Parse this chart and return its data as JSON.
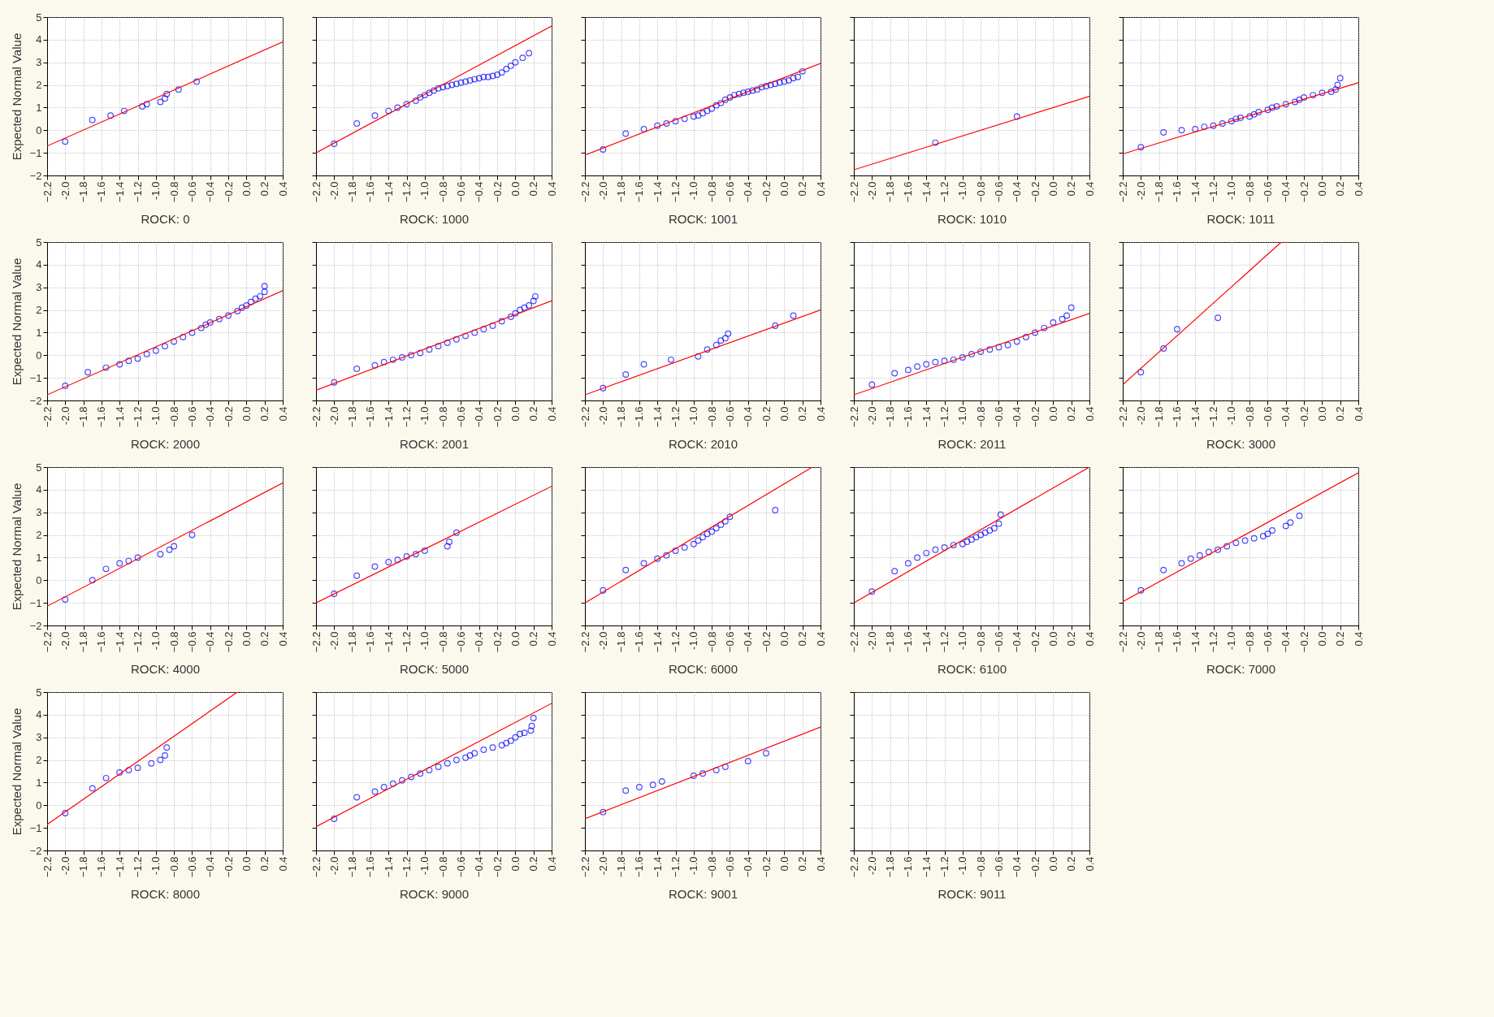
{
  "chart_data": [
    {
      "type": "scatter",
      "xlabel": "ROCK: 0",
      "ylabel": "Expected Normal Value",
      "grid": true,
      "xlim": [
        -2.2,
        0.4
      ],
      "ylim": [
        -2,
        5
      ],
      "xticks": [
        -2.2,
        {
          "value": -2,
          "label": "-2.0"
        },
        -1.8,
        -1.6,
        -1.4,
        -1.2,
        {
          "value": -1,
          "label": "-1.0"
        },
        -0.8,
        -0.6,
        -0.4,
        -0.2,
        {
          "value": 0,
          "label": "0.0"
        },
        0.2,
        0.4
      ],
      "yticks": [
        -2,
        -1,
        0,
        1,
        2,
        3,
        4,
        5
      ],
      "series": [
        {
          "type": "scatter",
          "marker": "circle",
          "color": "#0000ff",
          "x": [
            -2.0,
            -1.7,
            -1.5,
            -1.35,
            -1.15,
            -1.1,
            -0.95,
            -0.9,
            -0.88,
            -0.75,
            -0.55
          ],
          "values": [
            -0.5,
            0.45,
            0.65,
            0.85,
            1.05,
            1.15,
            1.25,
            1.4,
            1.6,
            1.8,
            2.15
          ]
        },
        {
          "type": "line",
          "color": "#ff0000",
          "x": [
            -2.2,
            0.4
          ],
          "values": [
            -0.7,
            3.9
          ]
        }
      ]
    },
    {
      "type": "scatter",
      "xlabel": "ROCK: 1000",
      "tick_labels": "x",
      "grid": true,
      "xlim": [
        -2.2,
        0.4
      ],
      "ylim": [
        -2,
        5
      ],
      "xticks": [
        -2.2,
        {
          "value": -2,
          "label": "-2.0"
        },
        -1.8,
        -1.6,
        -1.4,
        -1.2,
        {
          "value": -1,
          "label": "-1.0"
        },
        -0.8,
        -0.6,
        -0.4,
        -0.2,
        {
          "value": 0,
          "label": "0.0"
        },
        0.2,
        0.4
      ],
      "yticks": [
        -2,
        -1,
        0,
        1,
        2,
        3,
        4,
        5
      ],
      "series": [
        {
          "type": "scatter",
          "marker": "circle",
          "color": "#0000ff",
          "x": [
            -2.0,
            -1.75,
            -1.55,
            -1.4,
            -1.3,
            -1.2,
            -1.1,
            -1.05,
            -1.0,
            -0.95,
            -0.9,
            -0.85,
            -0.8,
            -0.75,
            -0.7,
            -0.65,
            -0.6,
            -0.55,
            -0.5,
            -0.45,
            -0.4,
            -0.35,
            -0.3,
            -0.25,
            -0.2,
            -0.15,
            -0.1,
            -0.05,
            0.0,
            0.08,
            0.15
          ],
          "values": [
            -0.6,
            0.3,
            0.65,
            0.85,
            1.0,
            1.15,
            1.3,
            1.45,
            1.55,
            1.65,
            1.75,
            1.85,
            1.9,
            1.95,
            2.0,
            2.05,
            2.1,
            2.15,
            2.2,
            2.25,
            2.3,
            2.35,
            2.35,
            2.4,
            2.45,
            2.55,
            2.7,
            2.85,
            3.0,
            3.2,
            3.4
          ]
        },
        {
          "type": "line",
          "color": "#ff0000",
          "x": [
            -2.2,
            0.4
          ],
          "values": [
            -1.0,
            4.6
          ]
        }
      ]
    },
    {
      "type": "scatter",
      "xlabel": "ROCK: 1001",
      "tick_labels": "x",
      "grid": true,
      "xlim": [
        -2.2,
        0.4
      ],
      "ylim": [
        -2,
        5
      ],
      "xticks": [
        -2.2,
        {
          "value": -2,
          "label": "-2.0"
        },
        -1.8,
        -1.6,
        -1.4,
        -1.2,
        {
          "value": -1,
          "label": "-1.0"
        },
        -0.8,
        -0.6,
        -0.4,
        -0.2,
        {
          "value": 0,
          "label": "0.0"
        },
        0.2,
        0.4
      ],
      "yticks": [
        -2,
        -1,
        0,
        1,
        2,
        3,
        4,
        5
      ],
      "series": [
        {
          "type": "scatter",
          "marker": "circle",
          "color": "#0000ff",
          "x": [
            -2.0,
            -1.75,
            -1.55,
            -1.4,
            -1.3,
            -1.2,
            -1.1,
            -1.0,
            -0.95,
            -0.9,
            -0.85,
            -0.8,
            -0.75,
            -0.7,
            -0.65,
            -0.6,
            -0.55,
            -0.5,
            -0.45,
            -0.4,
            -0.35,
            -0.3,
            -0.25,
            -0.2,
            -0.15,
            -0.1,
            -0.05,
            0.0,
            0.05,
            0.1,
            0.15,
            0.2
          ],
          "values": [
            -0.85,
            -0.15,
            0.05,
            0.2,
            0.3,
            0.4,
            0.5,
            0.6,
            0.65,
            0.75,
            0.85,
            0.95,
            1.1,
            1.2,
            1.35,
            1.45,
            1.55,
            1.6,
            1.65,
            1.7,
            1.75,
            1.8,
            1.9,
            1.95,
            2.0,
            2.05,
            2.1,
            2.15,
            2.2,
            2.3,
            2.35,
            2.6
          ]
        },
        {
          "type": "line",
          "color": "#ff0000",
          "x": [
            -2.2,
            0.4
          ],
          "values": [
            -1.1,
            2.95
          ]
        }
      ]
    },
    {
      "type": "scatter",
      "xlabel": "ROCK: 1010",
      "tick_labels": "x",
      "grid": true,
      "xlim": [
        -2.2,
        0.4
      ],
      "ylim": [
        -2,
        5
      ],
      "xticks": [
        -2.2,
        {
          "value": -2,
          "label": "-2.0"
        },
        -1.8,
        -1.6,
        -1.4,
        -1.2,
        {
          "value": -1,
          "label": "-1.0"
        },
        -0.8,
        -0.6,
        -0.4,
        -0.2,
        {
          "value": 0,
          "label": "0.0"
        },
        0.2,
        0.4
      ],
      "yticks": [
        -2,
        -1,
        0,
        1,
        2,
        3,
        4,
        5
      ],
      "series": [
        {
          "type": "scatter",
          "marker": "circle",
          "color": "#0000ff",
          "x": [
            -1.3,
            -0.4
          ],
          "values": [
            -0.55,
            0.6
          ]
        },
        {
          "type": "line",
          "color": "#ff0000",
          "x": [
            -2.2,
            0.4
          ],
          "values": [
            -1.75,
            1.5
          ]
        }
      ]
    },
    {
      "type": "scatter",
      "xlabel": "ROCK: 1011",
      "tick_labels": "x",
      "grid": true,
      "xlim": [
        -2.2,
        0.4
      ],
      "ylim": [
        -2,
        5
      ],
      "xticks": [
        -2.2,
        {
          "value": -2,
          "label": "-2.0"
        },
        -1.8,
        -1.6,
        -1.4,
        -1.2,
        {
          "value": -1,
          "label": "-1.0"
        },
        -0.8,
        -0.6,
        -0.4,
        -0.2,
        {
          "value": 0,
          "label": "0.0"
        },
        0.2,
        0.4
      ],
      "yticks": [
        -2,
        -1,
        0,
        1,
        2,
        3,
        4,
        5
      ],
      "series": [
        {
          "type": "scatter",
          "marker": "circle",
          "color": "#0000ff",
          "x": [
            -2.0,
            -1.75,
            -1.55,
            -1.4,
            -1.3,
            -1.2,
            -1.1,
            -1.0,
            -0.95,
            -0.9,
            -0.8,
            -0.75,
            -0.7,
            -0.6,
            -0.55,
            -0.5,
            -0.4,
            -0.3,
            -0.25,
            -0.2,
            -0.1,
            0.0,
            0.1,
            0.15,
            0.17,
            0.2
          ],
          "values": [
            -0.75,
            -0.1,
            0.0,
            0.05,
            0.15,
            0.2,
            0.3,
            0.4,
            0.5,
            0.55,
            0.6,
            0.7,
            0.8,
            0.9,
            1.0,
            1.05,
            1.15,
            1.25,
            1.35,
            1.45,
            1.55,
            1.65,
            1.7,
            1.8,
            2.0,
            2.3
          ]
        },
        {
          "type": "line",
          "color": "#ff0000",
          "x": [
            -2.2,
            0.4
          ],
          "values": [
            -1.05,
            2.1
          ]
        }
      ]
    },
    {
      "type": "scatter",
      "xlabel": "ROCK: 2000",
      "ylabel": "Expected Normal Value",
      "grid": true,
      "xlim": [
        -2.2,
        0.4
      ],
      "ylim": [
        -2,
        5
      ],
      "xticks": [
        -2.2,
        {
          "value": -2,
          "label": "-2.0"
        },
        -1.8,
        -1.6,
        -1.4,
        -1.2,
        {
          "value": -1,
          "label": "-1.0"
        },
        -0.8,
        -0.6,
        -0.4,
        -0.2,
        {
          "value": 0,
          "label": "0.0"
        },
        0.2,
        0.4
      ],
      "yticks": [
        -2,
        -1,
        0,
        1,
        2,
        3,
        4,
        5
      ],
      "series": [
        {
          "type": "scatter",
          "marker": "circle",
          "color": "#0000ff",
          "x": [
            -2.0,
            -1.75,
            -1.55,
            -1.4,
            -1.3,
            -1.2,
            -1.1,
            -1.0,
            -0.9,
            -0.8,
            -0.7,
            -0.6,
            -0.5,
            -0.45,
            -0.4,
            -0.3,
            -0.2,
            -0.1,
            -0.05,
            0.0,
            0.05,
            0.1,
            0.15,
            0.2,
            0.2
          ],
          "values": [
            -1.35,
            -0.75,
            -0.55,
            -0.4,
            -0.25,
            -0.15,
            0.05,
            0.2,
            0.4,
            0.6,
            0.8,
            1.0,
            1.2,
            1.35,
            1.45,
            1.6,
            1.75,
            1.95,
            2.1,
            2.2,
            2.35,
            2.5,
            2.6,
            2.8,
            3.05
          ]
        },
        {
          "type": "line",
          "color": "#ff0000",
          "x": [
            -2.2,
            0.4
          ],
          "values": [
            -1.75,
            2.85
          ]
        }
      ]
    },
    {
      "type": "scatter",
      "xlabel": "ROCK: 2001",
      "tick_labels": "x",
      "grid": true,
      "xlim": [
        -2.2,
        0.4
      ],
      "ylim": [
        -2,
        5
      ],
      "xticks": [
        -2.2,
        {
          "value": -2,
          "label": "-2.0"
        },
        -1.8,
        -1.6,
        -1.4,
        -1.2,
        {
          "value": -1,
          "label": "-1.0"
        },
        -0.8,
        -0.6,
        -0.4,
        -0.2,
        {
          "value": 0,
          "label": "0.0"
        },
        0.2,
        0.4
      ],
      "yticks": [
        -2,
        -1,
        0,
        1,
        2,
        3,
        4,
        5
      ],
      "series": [
        {
          "type": "scatter",
          "marker": "circle",
          "color": "#0000ff",
          "x": [
            -2.0,
            -1.75,
            -1.55,
            -1.45,
            -1.35,
            -1.25,
            -1.15,
            -1.05,
            -0.95,
            -0.85,
            -0.75,
            -0.65,
            -0.55,
            -0.45,
            -0.35,
            -0.25,
            -0.15,
            -0.05,
            0.0,
            0.05,
            0.1,
            0.15,
            0.2,
            0.22
          ],
          "values": [
            -1.2,
            -0.6,
            -0.45,
            -0.3,
            -0.2,
            -0.1,
            0.0,
            0.1,
            0.25,
            0.4,
            0.55,
            0.7,
            0.85,
            1.0,
            1.15,
            1.3,
            1.5,
            1.7,
            1.85,
            2.0,
            2.1,
            2.2,
            2.4,
            2.6
          ]
        },
        {
          "type": "line",
          "color": "#ff0000",
          "x": [
            -2.2,
            0.4
          ],
          "values": [
            -1.55,
            2.4
          ]
        }
      ]
    },
    {
      "type": "scatter",
      "xlabel": "ROCK: 2010",
      "tick_labels": "x",
      "grid": true,
      "xlim": [
        -2.2,
        0.4
      ],
      "ylim": [
        -2,
        5
      ],
      "xticks": [
        -2.2,
        {
          "value": -2,
          "label": "-2.0"
        },
        -1.8,
        -1.6,
        -1.4,
        -1.2,
        {
          "value": -1,
          "label": "-1.0"
        },
        -0.8,
        -0.6,
        -0.4,
        -0.2,
        {
          "value": 0,
          "label": "0.0"
        },
        0.2,
        0.4
      ],
      "yticks": [
        -2,
        -1,
        0,
        1,
        2,
        3,
        4,
        5
      ],
      "series": [
        {
          "type": "scatter",
          "marker": "circle",
          "color": "#0000ff",
          "x": [
            -2.0,
            -1.75,
            -1.55,
            -1.25,
            -0.95,
            -0.85,
            -0.75,
            -0.7,
            -0.65,
            -0.62,
            -0.1,
            0.1
          ],
          "values": [
            -1.45,
            -0.85,
            -0.4,
            -0.2,
            -0.05,
            0.25,
            0.45,
            0.65,
            0.75,
            0.95,
            1.3,
            1.75
          ]
        },
        {
          "type": "line",
          "color": "#ff0000",
          "x": [
            -2.2,
            0.4
          ],
          "values": [
            -1.75,
            2.0
          ]
        }
      ]
    },
    {
      "type": "scatter",
      "xlabel": "ROCK: 2011",
      "tick_labels": "x",
      "grid": true,
      "xlim": [
        -2.2,
        0.4
      ],
      "ylim": [
        -2,
        5
      ],
      "xticks": [
        -2.2,
        {
          "value": -2,
          "label": "-2.0"
        },
        -1.8,
        -1.6,
        -1.4,
        -1.2,
        {
          "value": -1,
          "label": "-1.0"
        },
        -0.8,
        -0.6,
        -0.4,
        -0.2,
        {
          "value": 0,
          "label": "0.0"
        },
        0.2,
        0.4
      ],
      "yticks": [
        -2,
        -1,
        0,
        1,
        2,
        3,
        4,
        5
      ],
      "series": [
        {
          "type": "scatter",
          "marker": "circle",
          "color": "#0000ff",
          "x": [
            -2.0,
            -1.75,
            -1.6,
            -1.5,
            -1.4,
            -1.3,
            -1.2,
            -1.1,
            -1.0,
            -0.9,
            -0.8,
            -0.7,
            -0.6,
            -0.5,
            -0.4,
            -0.3,
            -0.2,
            -0.1,
            0.0,
            0.1,
            0.15,
            0.2
          ],
          "values": [
            -1.3,
            -0.8,
            -0.65,
            -0.5,
            -0.4,
            -0.3,
            -0.25,
            -0.2,
            -0.1,
            0.05,
            0.15,
            0.25,
            0.35,
            0.45,
            0.6,
            0.8,
            1.0,
            1.2,
            1.45,
            1.6,
            1.75,
            2.1
          ]
        },
        {
          "type": "line",
          "color": "#ff0000",
          "x": [
            -2.2,
            0.4
          ],
          "values": [
            -1.75,
            1.85
          ]
        }
      ]
    },
    {
      "type": "scatter",
      "xlabel": "ROCK: 3000",
      "tick_labels": "x",
      "grid": true,
      "xlim": [
        -2.2,
        0.4
      ],
      "ylim": [
        -2,
        5
      ],
      "xticks": [
        -2.2,
        {
          "value": -2,
          "label": "-2.0"
        },
        -1.8,
        -1.6,
        -1.4,
        -1.2,
        {
          "value": -1,
          "label": "-1.0"
        },
        -0.8,
        -0.6,
        -0.4,
        -0.2,
        {
          "value": 0,
          "label": "0.0"
        },
        0.2,
        0.4
      ],
      "yticks": [
        -2,
        -1,
        0,
        1,
        2,
        3,
        4,
        5
      ],
      "series": [
        {
          "type": "scatter",
          "marker": "circle",
          "color": "#0000ff",
          "x": [
            -2.0,
            -1.75,
            -1.6,
            -1.15
          ],
          "values": [
            -0.75,
            0.3,
            1.15,
            1.65
          ]
        },
        {
          "type": "line",
          "color": "#ff0000",
          "x": [
            -2.2,
            -0.45
          ],
          "values": [
            -1.3,
            5
          ]
        }
      ]
    },
    {
      "type": "scatter",
      "xlabel": "ROCK: 4000",
      "ylabel": "Expected Normal Value",
      "grid": true,
      "xlim": [
        -2.2,
        0.4
      ],
      "ylim": [
        -2,
        5
      ],
      "xticks": [
        -2.2,
        {
          "value": -2,
          "label": "-2.0"
        },
        -1.8,
        -1.6,
        -1.4,
        -1.2,
        {
          "value": -1,
          "label": "-1.0"
        },
        -0.8,
        -0.6,
        -0.4,
        -0.2,
        {
          "value": 0,
          "label": "0.0"
        },
        0.2,
        0.4
      ],
      "yticks": [
        -2,
        -1,
        0,
        1,
        2,
        3,
        4,
        5
      ],
      "series": [
        {
          "type": "scatter",
          "marker": "circle",
          "color": "#0000ff",
          "x": [
            -2.0,
            -1.7,
            -1.55,
            -1.4,
            -1.3,
            -1.2,
            -0.95,
            -0.85,
            -0.8,
            -0.6
          ],
          "values": [
            -0.85,
            0.0,
            0.5,
            0.75,
            0.85,
            1.0,
            1.15,
            1.35,
            1.5,
            2.0
          ]
        },
        {
          "type": "line",
          "color": "#ff0000",
          "x": [
            -2.2,
            0.4
          ],
          "values": [
            -1.15,
            4.3
          ]
        }
      ]
    },
    {
      "type": "scatter",
      "xlabel": "ROCK: 5000",
      "tick_labels": "x",
      "grid": true,
      "xlim": [
        -2.2,
        0.4
      ],
      "ylim": [
        -2,
        5
      ],
      "xticks": [
        -2.2,
        {
          "value": -2,
          "label": "-2.0"
        },
        -1.8,
        -1.6,
        -1.4,
        -1.2,
        {
          "value": -1,
          "label": "-1.0"
        },
        -0.8,
        -0.6,
        -0.4,
        -0.2,
        {
          "value": 0,
          "label": "0.0"
        },
        0.2,
        0.4
      ],
      "yticks": [
        -2,
        -1,
        0,
        1,
        2,
        3,
        4,
        5
      ],
      "series": [
        {
          "type": "scatter",
          "marker": "circle",
          "color": "#0000ff",
          "x": [
            -2.0,
            -1.75,
            -1.55,
            -1.4,
            -1.3,
            -1.2,
            -1.1,
            -1.0,
            -0.75,
            -0.73,
            -0.65
          ],
          "values": [
            -0.6,
            0.2,
            0.6,
            0.8,
            0.9,
            1.05,
            1.15,
            1.3,
            1.5,
            1.7,
            2.1
          ]
        },
        {
          "type": "line",
          "color": "#ff0000",
          "x": [
            -2.2,
            0.4
          ],
          "values": [
            -1.0,
            4.15
          ]
        }
      ]
    },
    {
      "type": "scatter",
      "xlabel": "ROCK: 6000",
      "tick_labels": "x",
      "grid": true,
      "xlim": [
        -2.2,
        0.4
      ],
      "ylim": [
        -2,
        5
      ],
      "xticks": [
        -2.2,
        {
          "value": -2,
          "label": "-2.0"
        },
        -1.8,
        -1.6,
        -1.4,
        -1.2,
        {
          "value": -1,
          "label": "-1.0"
        },
        -0.8,
        -0.6,
        -0.4,
        -0.2,
        {
          "value": 0,
          "label": "0.0"
        },
        0.2,
        0.4
      ],
      "yticks": [
        -2,
        -1,
        0,
        1,
        2,
        3,
        4,
        5
      ],
      "series": [
        {
          "type": "scatter",
          "marker": "circle",
          "color": "#0000ff",
          "x": [
            -2.0,
            -1.75,
            -1.55,
            -1.4,
            -1.3,
            -1.2,
            -1.1,
            -1.0,
            -0.95,
            -0.9,
            -0.85,
            -0.8,
            -0.75,
            -0.7,
            -0.65,
            -0.6,
            -0.1
          ],
          "values": [
            -0.45,
            0.45,
            0.75,
            0.95,
            1.1,
            1.3,
            1.45,
            1.6,
            1.75,
            1.9,
            2.05,
            2.15,
            2.3,
            2.45,
            2.6,
            2.8,
            3.1
          ]
        },
        {
          "type": "line",
          "color": "#ff0000",
          "x": [
            -2.2,
            0.31
          ],
          "values": [
            -1.0,
            5
          ]
        }
      ]
    },
    {
      "type": "scatter",
      "xlabel": "ROCK: 6100",
      "tick_labels": "x",
      "grid": true,
      "xlim": [
        -2.2,
        0.4
      ],
      "ylim": [
        -2,
        5
      ],
      "xticks": [
        -2.2,
        {
          "value": -2,
          "label": "-2.0"
        },
        -1.8,
        -1.6,
        -1.4,
        -1.2,
        {
          "value": -1,
          "label": "-1.0"
        },
        -0.8,
        -0.6,
        -0.4,
        -0.2,
        {
          "value": 0,
          "label": "0.0"
        },
        0.2,
        0.4
      ],
      "yticks": [
        -2,
        -1,
        0,
        1,
        2,
        3,
        4,
        5
      ],
      "series": [
        {
          "type": "scatter",
          "marker": "circle",
          "color": "#0000ff",
          "x": [
            -2.0,
            -1.75,
            -1.6,
            -1.5,
            -1.4,
            -1.3,
            -1.2,
            -1.1,
            -1.0,
            -0.95,
            -0.9,
            -0.85,
            -0.8,
            -0.75,
            -0.7,
            -0.65,
            -0.6,
            -0.58
          ],
          "values": [
            -0.5,
            0.4,
            0.75,
            1.0,
            1.2,
            1.35,
            1.45,
            1.55,
            1.6,
            1.7,
            1.8,
            1.9,
            2.0,
            2.1,
            2.2,
            2.3,
            2.5,
            2.9
          ]
        },
        {
          "type": "line",
          "color": "#ff0000",
          "x": [
            -2.2,
            0.4
          ],
          "values": [
            -1.0,
            5
          ]
        }
      ]
    },
    {
      "type": "scatter",
      "xlabel": "ROCK: 7000",
      "tick_labels": "x",
      "grid": true,
      "xlim": [
        -2.2,
        0.4
      ],
      "ylim": [
        -2,
        5
      ],
      "xticks": [
        -2.2,
        {
          "value": -2,
          "label": "-2.0"
        },
        -1.8,
        -1.6,
        -1.4,
        -1.2,
        {
          "value": -1,
          "label": "-1.0"
        },
        -0.8,
        -0.6,
        -0.4,
        -0.2,
        {
          "value": 0,
          "label": "0.0"
        },
        0.2,
        0.4
      ],
      "yticks": [
        -2,
        -1,
        0,
        1,
        2,
        3,
        4,
        5
      ],
      "series": [
        {
          "type": "scatter",
          "marker": "circle",
          "color": "#0000ff",
          "x": [
            -2.0,
            -1.75,
            -1.55,
            -1.45,
            -1.35,
            -1.25,
            -1.15,
            -1.05,
            -0.95,
            -0.85,
            -0.75,
            -0.65,
            -0.6,
            -0.55,
            -0.4,
            -0.35,
            -0.25
          ],
          "values": [
            -0.45,
            0.45,
            0.75,
            0.95,
            1.1,
            1.25,
            1.35,
            1.5,
            1.65,
            1.75,
            1.85,
            1.95,
            2.05,
            2.2,
            2.4,
            2.55,
            2.85
          ]
        },
        {
          "type": "line",
          "color": "#ff0000",
          "x": [
            -2.2,
            0.4
          ],
          "values": [
            -0.95,
            4.75
          ]
        }
      ]
    },
    {
      "type": "scatter",
      "xlabel": "ROCK: 8000",
      "ylabel": "Expected Normal Value",
      "grid": true,
      "xlim": [
        -2.2,
        0.4
      ],
      "ylim": [
        -2,
        5
      ],
      "xticks": [
        -2.2,
        {
          "value": -2,
          "label": "-2.0"
        },
        -1.8,
        -1.6,
        -1.4,
        -1.2,
        {
          "value": -1,
          "label": "-1.0"
        },
        -0.8,
        -0.6,
        -0.4,
        -0.2,
        {
          "value": 0,
          "label": "0.0"
        },
        0.2,
        0.4
      ],
      "yticks": [
        -2,
        -1,
        0,
        1,
        2,
        3,
        4,
        5
      ],
      "series": [
        {
          "type": "scatter",
          "marker": "circle",
          "color": "#0000ff",
          "x": [
            -2.0,
            -1.7,
            -1.55,
            -1.4,
            -1.3,
            -1.2,
            -1.05,
            -0.95,
            -0.9,
            -0.88
          ],
          "values": [
            -0.35,
            0.75,
            1.2,
            1.45,
            1.55,
            1.65,
            1.85,
            2.0,
            2.2,
            2.55
          ]
        },
        {
          "type": "line",
          "color": "#ff0000",
          "x": [
            -2.2,
            -0.1
          ],
          "values": [
            -0.85,
            5
          ]
        }
      ]
    },
    {
      "type": "scatter",
      "xlabel": "ROCK: 9000",
      "tick_labels": "x",
      "grid": true,
      "xlim": [
        -2.2,
        0.4
      ],
      "ylim": [
        -2,
        5
      ],
      "xticks": [
        -2.2,
        {
          "value": -2,
          "label": "-2.0"
        },
        -1.8,
        -1.6,
        -1.4,
        -1.2,
        {
          "value": -1,
          "label": "-1.0"
        },
        -0.8,
        -0.6,
        -0.4,
        -0.2,
        {
          "value": 0,
          "label": "0.0"
        },
        0.2,
        0.4
      ],
      "yticks": [
        -2,
        -1,
        0,
        1,
        2,
        3,
        4,
        5
      ],
      "series": [
        {
          "type": "scatter",
          "marker": "circle",
          "color": "#0000ff",
          "x": [
            -2.0,
            -1.75,
            -1.55,
            -1.45,
            -1.35,
            -1.25,
            -1.15,
            -1.05,
            -0.95,
            -0.85,
            -0.75,
            -0.65,
            -0.55,
            -0.5,
            -0.45,
            -0.35,
            -0.25,
            -0.15,
            -0.1,
            -0.05,
            0.0,
            0.05,
            0.1,
            0.17,
            0.18,
            0.2
          ],
          "values": [
            -0.6,
            0.35,
            0.6,
            0.8,
            0.95,
            1.1,
            1.25,
            1.4,
            1.55,
            1.7,
            1.85,
            2.0,
            2.1,
            2.2,
            2.3,
            2.45,
            2.55,
            2.65,
            2.75,
            2.85,
            3.0,
            3.15,
            3.2,
            3.3,
            3.5,
            3.85
          ]
        },
        {
          "type": "line",
          "color": "#ff0000",
          "x": [
            -2.2,
            0.4
          ],
          "values": [
            -0.95,
            4.5
          ]
        }
      ]
    },
    {
      "type": "scatter",
      "xlabel": "ROCK: 9001",
      "tick_labels": "x",
      "grid": true,
      "xlim": [
        -2.2,
        0.4
      ],
      "ylim": [
        -2,
        5
      ],
      "xticks": [
        -2.2,
        {
          "value": -2,
          "label": "-2.0"
        },
        -1.8,
        -1.6,
        -1.4,
        -1.2,
        {
          "value": -1,
          "label": "-1.0"
        },
        -0.8,
        -0.6,
        -0.4,
        -0.2,
        {
          "value": 0,
          "label": "0.0"
        },
        0.2,
        0.4
      ],
      "yticks": [
        -2,
        -1,
        0,
        1,
        2,
        3,
        4,
        5
      ],
      "series": [
        {
          "type": "scatter",
          "marker": "circle",
          "color": "#0000ff",
          "x": [
            -2.0,
            -1.75,
            -1.6,
            -1.45,
            -1.35,
            -1.0,
            -0.9,
            -0.75,
            -0.65,
            -0.4,
            -0.2
          ],
          "values": [
            -0.3,
            0.65,
            0.8,
            0.9,
            1.05,
            1.3,
            1.4,
            1.55,
            1.7,
            1.95,
            2.3
          ]
        },
        {
          "type": "line",
          "color": "#ff0000",
          "x": [
            -2.2,
            0.4
          ],
          "values": [
            -0.6,
            3.45
          ]
        }
      ]
    },
    {
      "type": "scatter",
      "xlabel": "ROCK: 9011",
      "tick_labels": "x",
      "grid": true,
      "xlim": [
        -2.2,
        0.4
      ],
      "ylim": [
        -2,
        5
      ],
      "xticks": [
        -2.2,
        {
          "value": -2,
          "label": "-2.0"
        },
        -1.8,
        -1.6,
        -1.4,
        -1.2,
        {
          "value": -1,
          "label": "-1.0"
        },
        -0.8,
        -0.6,
        -0.4,
        -0.2,
        {
          "value": 0,
          "label": "0.0"
        },
        0.2,
        0.4
      ],
      "yticks": [
        -2,
        -1,
        0,
        1,
        2,
        3,
        4,
        5
      ]
    }
  ]
}
